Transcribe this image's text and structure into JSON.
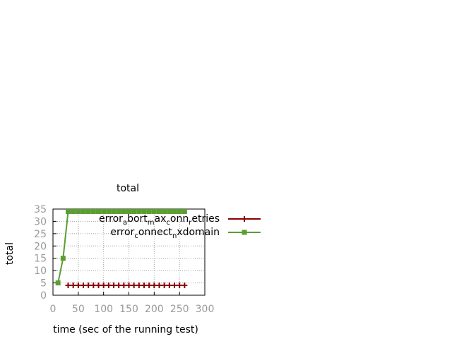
{
  "chart_data": {
    "type": "line",
    "title": "total",
    "xlabel": "time (sec of the running test)",
    "ylabel": "total",
    "xlim": [
      0,
      300
    ],
    "ylim": [
      0,
      35
    ],
    "xticks": [
      0,
      50,
      100,
      150,
      200,
      250,
      300
    ],
    "yticks": [
      0,
      5,
      10,
      15,
      20,
      25,
      30,
      35
    ],
    "grid": true,
    "legend_position": "top-right",
    "series": [
      {
        "name": "error_abort_max_conn_retries",
        "legend_parts": [
          {
            "text": "error",
            "sub": false
          },
          {
            "text": "a",
            "sub": true
          },
          {
            "text": "bort",
            "sub": false
          },
          {
            "text": "m",
            "sub": true
          },
          {
            "text": "ax",
            "sub": false
          },
          {
            "text": "c",
            "sub": true
          },
          {
            "text": "onn",
            "sub": false
          },
          {
            "text": "r",
            "sub": true
          },
          {
            "text": "etries",
            "sub": false
          }
        ],
        "color": "#8b0000",
        "marker": "plus",
        "x": [
          30,
          40,
          50,
          60,
          70,
          80,
          90,
          100,
          110,
          120,
          130,
          140,
          150,
          160,
          170,
          180,
          190,
          200,
          210,
          220,
          230,
          240,
          250,
          260
        ],
        "y": [
          4,
          4,
          4,
          4,
          4,
          4,
          4,
          4,
          4,
          4,
          4,
          4,
          4,
          4,
          4,
          4,
          4,
          4,
          4,
          4,
          4,
          4,
          4,
          4
        ]
      },
      {
        "name": "error_connect_nxdomain",
        "legend_parts": [
          {
            "text": "error",
            "sub": false
          },
          {
            "text": "c",
            "sub": true
          },
          {
            "text": "onnect",
            "sub": false
          },
          {
            "text": "n",
            "sub": true
          },
          {
            "text": "xdomain",
            "sub": false
          }
        ],
        "color": "#5a9e32",
        "marker": "square",
        "x": [
          10,
          20,
          30,
          40,
          50,
          60,
          70,
          80,
          90,
          100,
          110,
          120,
          130,
          140,
          150,
          160,
          170,
          180,
          190,
          200,
          210,
          220,
          230,
          240,
          250,
          260
        ],
        "y": [
          5,
          15,
          34,
          34,
          34,
          34,
          34,
          34,
          34,
          34,
          34,
          34,
          34,
          34,
          34,
          34,
          34,
          34,
          34,
          34,
          34,
          34,
          34,
          34,
          34,
          34
        ]
      }
    ]
  }
}
